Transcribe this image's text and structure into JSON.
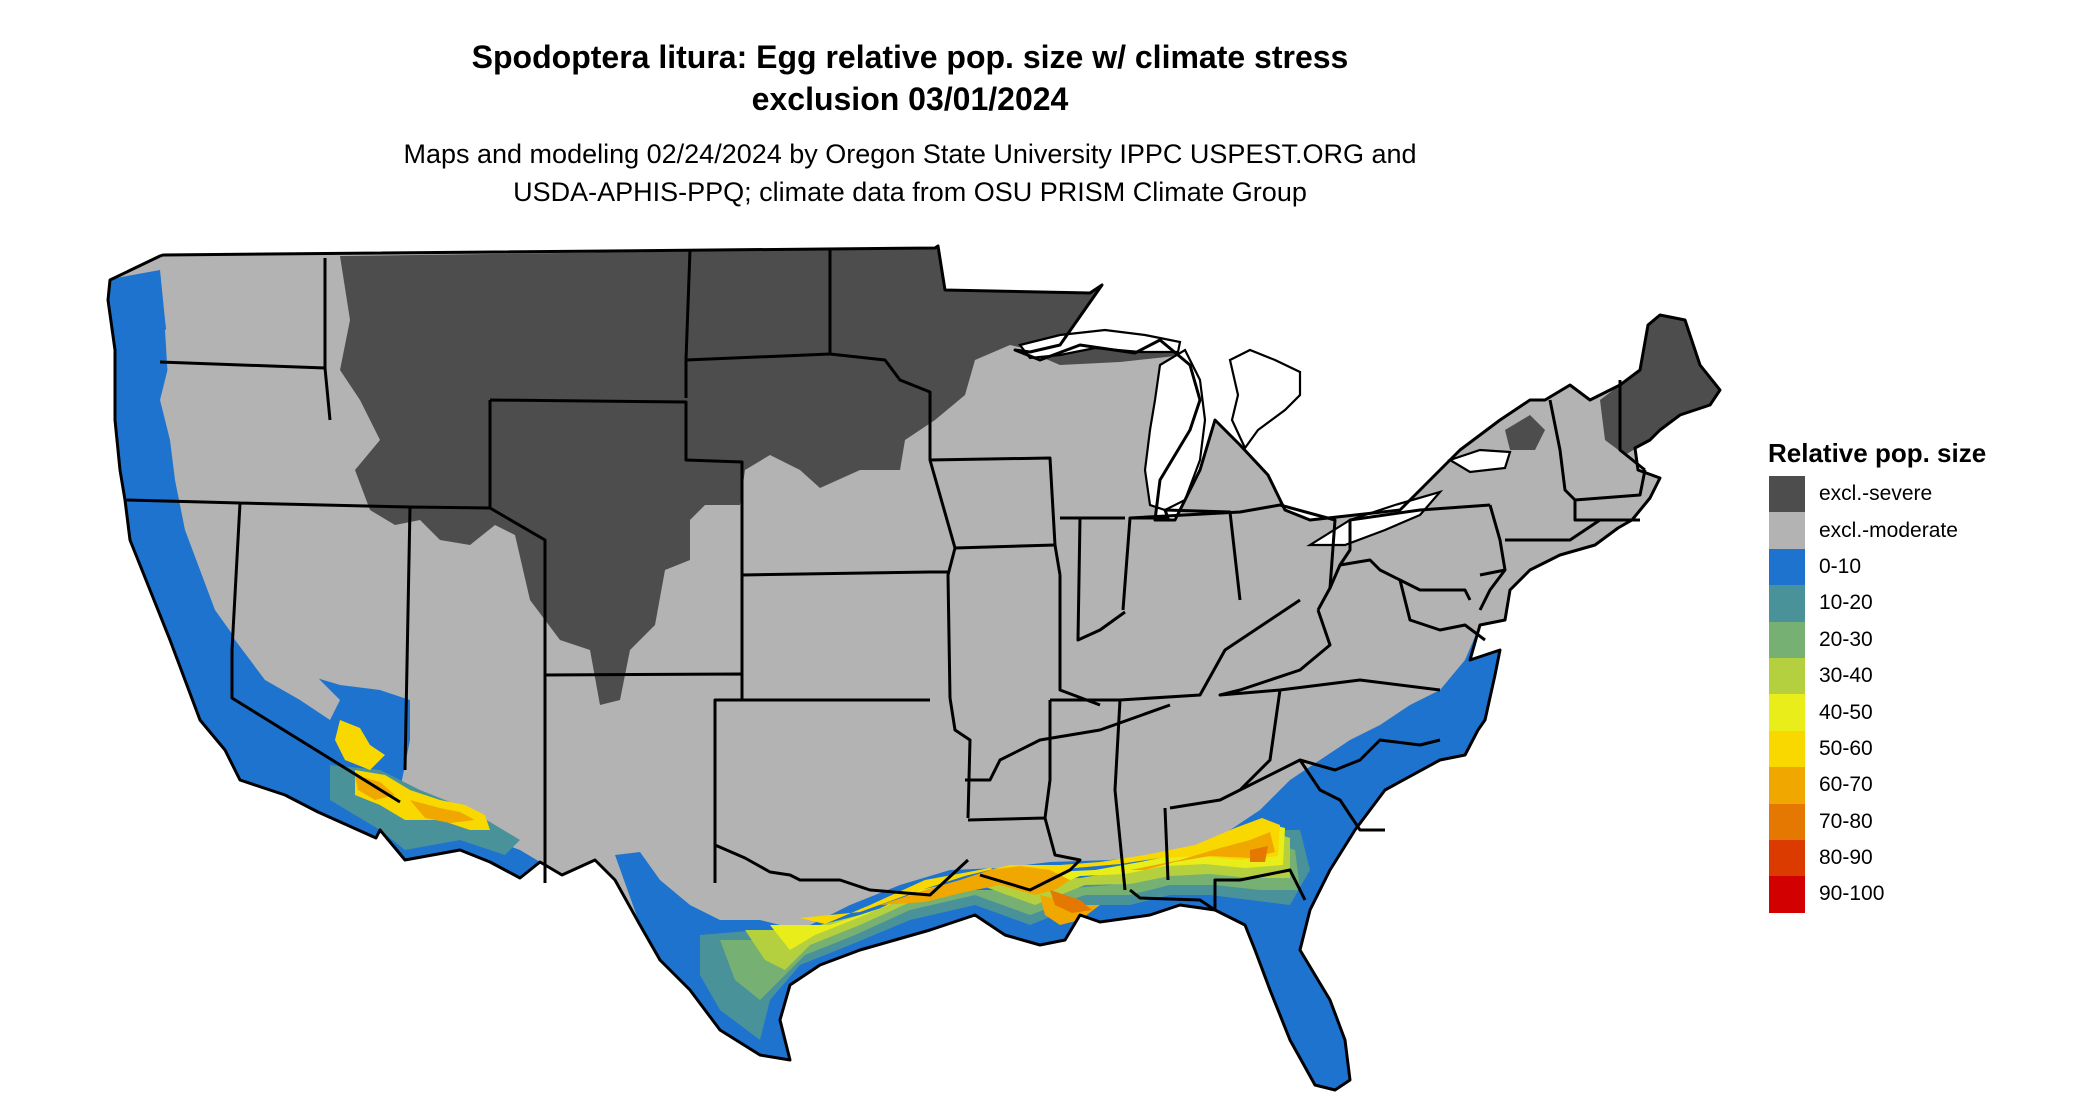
{
  "title": {
    "line1": "Spodoptera litura: Egg relative pop. size w/ climate stress",
    "line2": "exclusion 03/01/2024"
  },
  "subtitle": {
    "line1": "Maps and modeling 02/24/2024 by Oregon State University IPPC USPEST.ORG and",
    "line2": "USDA-APHIS-PPQ; climate data from OSU PRISM Climate Group"
  },
  "legend": {
    "title": "Relative pop. size",
    "items": [
      {
        "label": "excl.-severe",
        "color": "#4d4d4d"
      },
      {
        "label": "excl.-moderate",
        "color": "#b3b3b3"
      },
      {
        "label": "0-10",
        "color": "#1e73cf"
      },
      {
        "label": "10-20",
        "color": "#4a9299"
      },
      {
        "label": "20-30",
        "color": "#76b072"
      },
      {
        "label": "30-40",
        "color": "#b5d03e"
      },
      {
        "label": "40-50",
        "color": "#e9ee1a"
      },
      {
        "label": "50-60",
        "color": "#f9d800"
      },
      {
        "label": "60-70",
        "color": "#f0a800"
      },
      {
        "label": "70-80",
        "color": "#e57800"
      },
      {
        "label": "80-90",
        "color": "#dc3b00"
      },
      {
        "label": "90-100",
        "color": "#d20000"
      }
    ]
  }
}
